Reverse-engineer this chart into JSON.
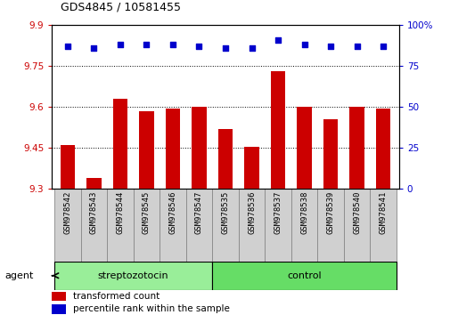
{
  "title": "GDS4845 / 10581455",
  "samples": [
    "GSM978542",
    "GSM978543",
    "GSM978544",
    "GSM978545",
    "GSM978546",
    "GSM978547",
    "GSM978535",
    "GSM978536",
    "GSM978537",
    "GSM978538",
    "GSM978539",
    "GSM978540",
    "GSM978541"
  ],
  "bar_values": [
    9.46,
    9.34,
    9.63,
    9.585,
    9.595,
    9.6,
    9.52,
    9.455,
    9.73,
    9.6,
    9.555,
    9.6,
    9.595
  ],
  "percentile_values": [
    87,
    86,
    88,
    88,
    88,
    87,
    86,
    86,
    91,
    88,
    87,
    87,
    87
  ],
  "bar_color": "#cc0000",
  "percentile_color": "#0000cc",
  "ylim_left": [
    9.3,
    9.9
  ],
  "ylim_right": [
    0,
    100
  ],
  "yticks_left": [
    9.3,
    9.45,
    9.6,
    9.75,
    9.9
  ],
  "yticks_right": [
    0,
    25,
    50,
    75,
    100
  ],
  "ytick_labels_left": [
    "9.3",
    "9.45",
    "9.6",
    "9.75",
    "9.9"
  ],
  "ytick_labels_right": [
    "0",
    "25",
    "50",
    "75",
    "100%"
  ],
  "gridlines": [
    9.45,
    9.6,
    9.75
  ],
  "groups": [
    {
      "label": "streptozotocin",
      "start": 0,
      "end": 5,
      "color": "#99ee99"
    },
    {
      "label": "control",
      "start": 6,
      "end": 12,
      "color": "#66dd66"
    }
  ],
  "agent_label": "agent",
  "legend_bar_label": "transformed count",
  "legend_pct_label": "percentile rank within the sample",
  "bar_color_legend": "#cc0000",
  "pct_color_legend": "#0000cc",
  "bar_bottom": 9.3,
  "background_color": "#ffffff",
  "gray_cell_color": "#d0d0d0",
  "cell_edge_color": "#888888"
}
